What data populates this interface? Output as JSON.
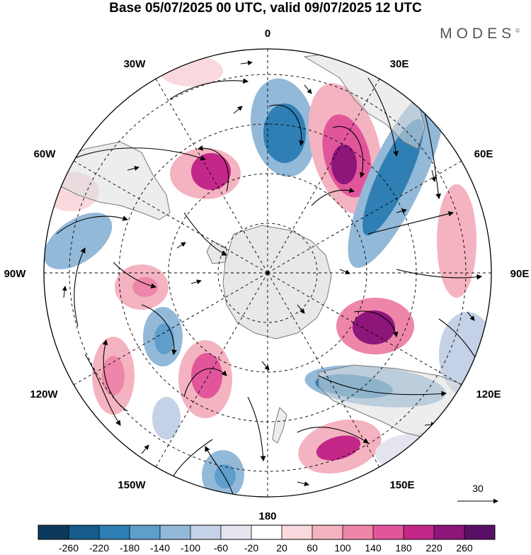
{
  "title": "Base 05/07/2025 00 UTC, valid 09/07/2025 12 UTC",
  "brand": "MODES",
  "brand_mark": "©",
  "longitude_labels": {
    "lon_0": "0",
    "lon_30e": "30E",
    "lon_60e": "60E",
    "lon_90e": "90E",
    "lon_120e": "120E",
    "lon_150e": "150E",
    "lon_180": "180",
    "lon_150w": "150W",
    "lon_120w": "120W",
    "lon_90w": "90W",
    "lon_60w": "60W",
    "lon_30w": "30W"
  },
  "wind_reference": {
    "value": "30"
  },
  "colorbar": {
    "ticks": [
      "-260",
      "-220",
      "-180",
      "-140",
      "-100",
      "-60",
      "-20",
      "20",
      "60",
      "100",
      "140",
      "180",
      "220",
      "260"
    ],
    "colors": [
      "#0d3a5c",
      "#155c8a",
      "#2f7fb4",
      "#5e9ecb",
      "#93b9d9",
      "#c4d1e6",
      "#e5e5f0",
      "#ffffff",
      "#f9d9dd",
      "#f4b3c0",
      "#ee86aa",
      "#e1569b",
      "#c32888",
      "#8d167a",
      "#5a0f66"
    ]
  },
  "colors": {
    "land": "#e8e8e8",
    "coastline": "#7a7a7a",
    "streamline": "#000000",
    "graticule": "#000000"
  }
}
